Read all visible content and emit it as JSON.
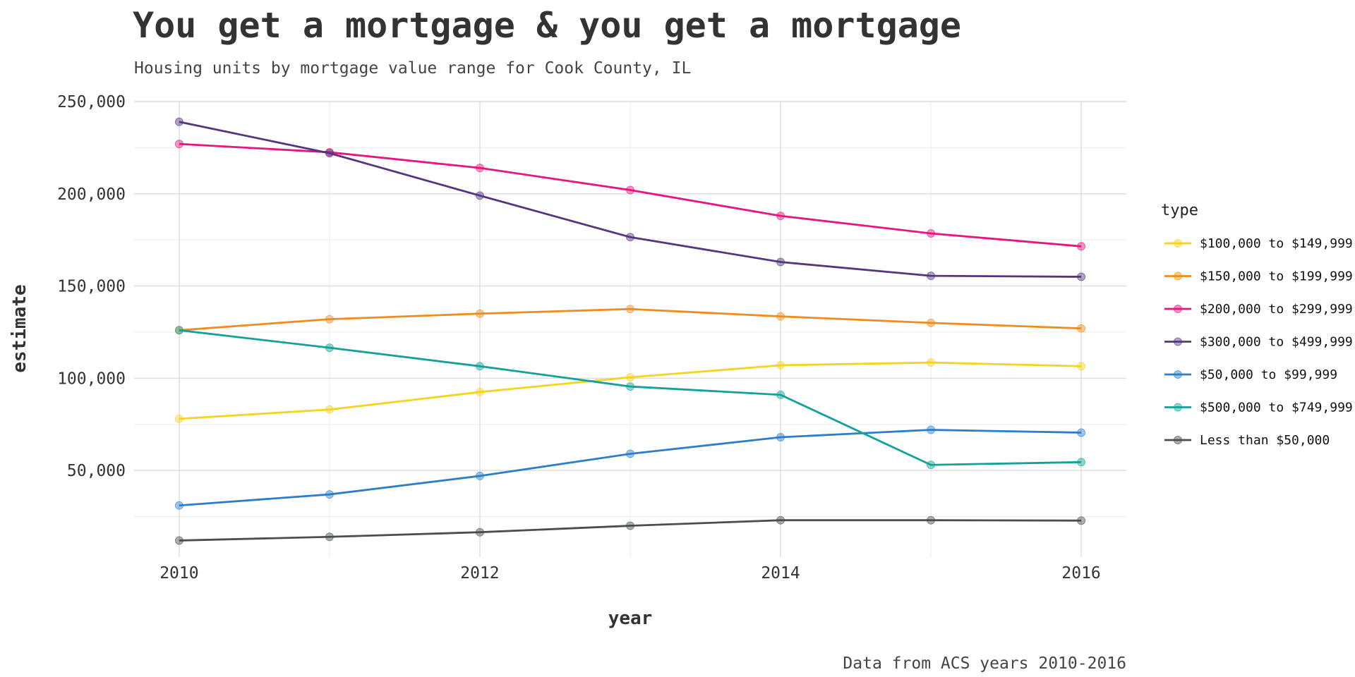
{
  "chart_data": {
    "type": "line",
    "title": "You get a mortgage & you get a mortgage",
    "subtitle": "Housing units by mortgage value range for Cook County, IL",
    "xlabel": "year",
    "ylabel": "estimate",
    "caption": "Data from ACS years 2010-2016",
    "x": [
      2010,
      2011,
      2012,
      2013,
      2014,
      2015,
      2016
    ],
    "xlim": [
      2009.7,
      2016.3
    ],
    "ylim": [
      3000,
      250000
    ],
    "x_ticks": [
      2010,
      2012,
      2014,
      2016
    ],
    "x_tick_labels": [
      "2010",
      "2012",
      "2014",
      "2016"
    ],
    "y_ticks": [
      50000,
      100000,
      150000,
      200000,
      250000
    ],
    "y_tick_labels": [
      "50,000",
      "100,000",
      "150,000",
      "200,000",
      "250,000"
    ],
    "grid": true,
    "legend": {
      "title": "type",
      "position": "right"
    },
    "series": [
      {
        "name": "$100,000 to $149,999",
        "color": "#F5D31F",
        "values": [
          78000,
          83000,
          92500,
          100500,
          107000,
          108500,
          106500
        ]
      },
      {
        "name": "$150,000 to $199,999",
        "color": "#F08C1F",
        "values": [
          126000,
          132000,
          135000,
          137500,
          133500,
          130000,
          127000
        ]
      },
      {
        "name": "$200,000 to $299,999",
        "color": "#E6157F",
        "values": [
          227000,
          222500,
          214000,
          202000,
          188000,
          178500,
          171500
        ]
      },
      {
        "name": "$300,000 to $499,999",
        "color": "#55357F",
        "values": [
          239000,
          222000,
          199000,
          176500,
          163000,
          155500,
          155000
        ]
      },
      {
        "name": "$50,000 to $99,999",
        "color": "#2D7ECA",
        "values": [
          31000,
          37000,
          47000,
          59000,
          68000,
          72000,
          70500
        ]
      },
      {
        "name": "$500,000 to $749,999",
        "color": "#14A199",
        "values": [
          126000,
          116500,
          106500,
          95500,
          91000,
          53000,
          54500
        ]
      },
      {
        "name": "Less than $50,000",
        "color": "#4A4F4D",
        "values": [
          12000,
          14000,
          16500,
          20000,
          23000,
          23000,
          22800
        ]
      }
    ]
  }
}
